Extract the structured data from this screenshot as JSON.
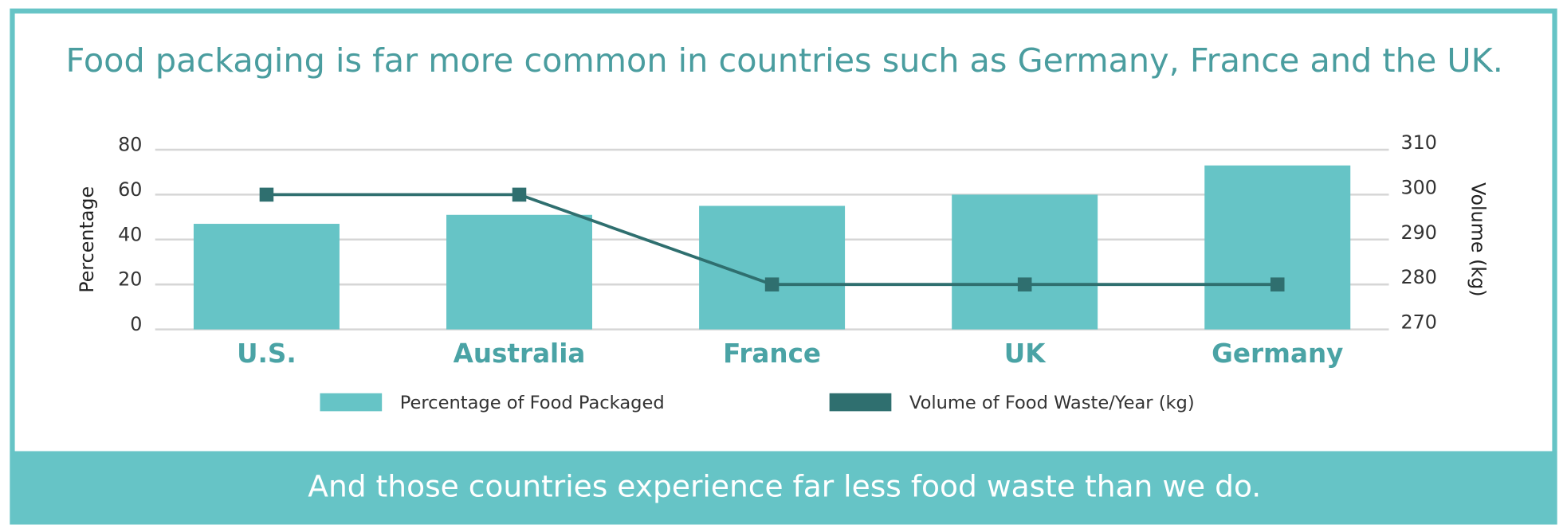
{
  "chart_data": {
    "type": "bar",
    "title": "Food packaging is far more common in countries such as Germany, France and the UK.",
    "annotation": "And those countries experience far less food waste than we do.",
    "categories": [
      "U.S.",
      "Australia",
      "France",
      "UK",
      "Germany"
    ],
    "y_label": "Percentage",
    "y2_label": "Volume (kg)",
    "series": [
      {
        "name": "Percentage of Food Packaged",
        "type": "bar",
        "color": "#66c4c6",
        "values": [
          47,
          51,
          55,
          60,
          73
        ]
      },
      {
        "name": "Volume of Food Waste/Year (kg)",
        "type": "line",
        "axis": "y2",
        "color": "#2f6f6f",
        "values": [
          300,
          300,
          280,
          280,
          280
        ]
      }
    ],
    "ylim": [
      0,
      80
    ],
    "yticks": [
      0,
      20,
      40,
      60,
      80
    ],
    "y2lim": [
      270,
      310
    ],
    "y2ticks": [
      270,
      280,
      290,
      300,
      310
    ],
    "grid": true,
    "legend": "bottom"
  }
}
